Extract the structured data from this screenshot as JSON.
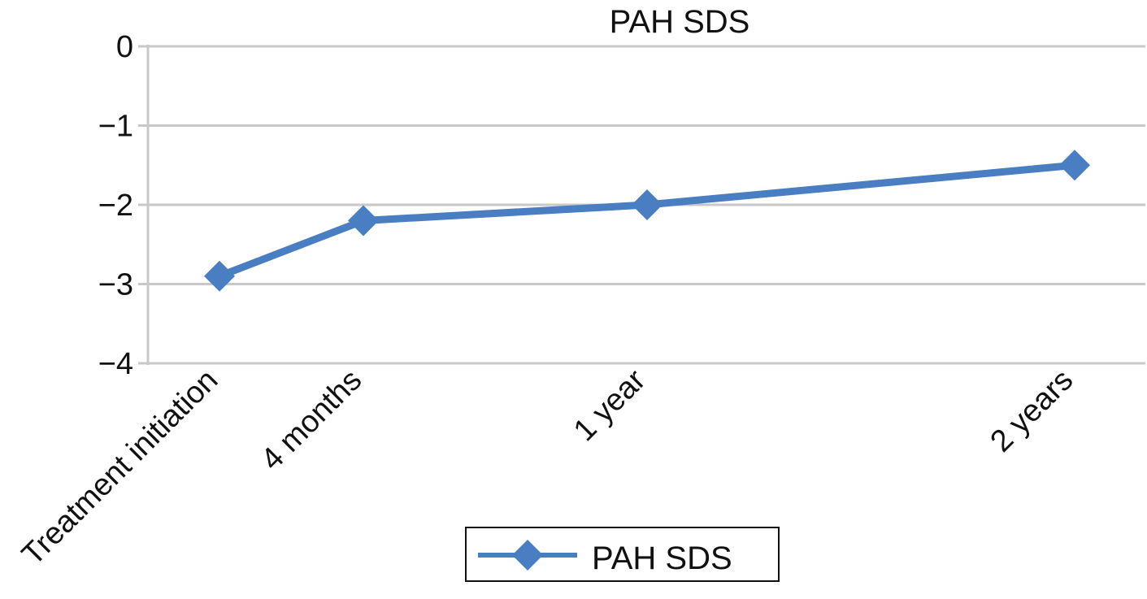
{
  "chart_data": {
    "type": "line",
    "title": "PAH SDS",
    "categories": [
      "Treatment initiation",
      "4 months",
      "1 year",
      "2 years"
    ],
    "x_positions_months": [
      0,
      4,
      12,
      24
    ],
    "series": [
      {
        "name": "PAH SDS",
        "values": [
          -2.9,
          -2.2,
          -2.0,
          -1.5
        ]
      }
    ],
    "yticks": [
      "0",
      "−1",
      "−2",
      "−3",
      "−4"
    ],
    "ylim": [
      -4,
      0
    ],
    "grid": true,
    "legend": "bottom",
    "colors": {
      "series": "#4a7ec2",
      "grid": "#c8c8c8"
    }
  }
}
